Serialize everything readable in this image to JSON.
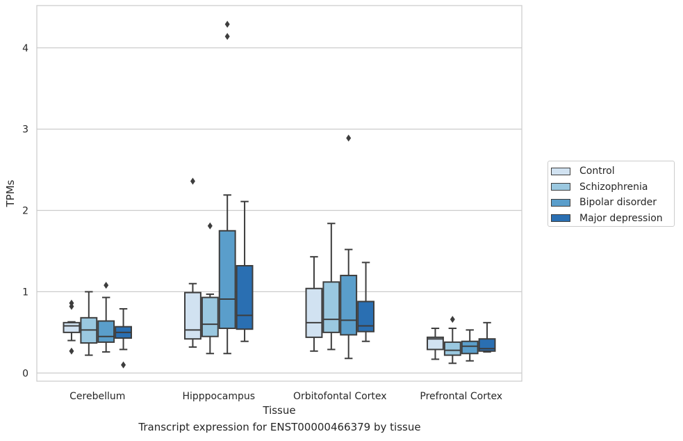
{
  "caption": "Transcript expression for ENST00000466379 by tissue",
  "chart_data": {
    "type": "box",
    "title": "",
    "xlabel": "Tissue",
    "ylabel": "TPMs",
    "ylim": [
      -0.1,
      4.52
    ],
    "yticks": [
      0,
      1,
      2,
      3,
      4
    ],
    "grid": "horizontal",
    "legend_position": "right",
    "categories": [
      "Cerebellum",
      "Hipppocampus",
      "Orbitofontal Cortex",
      "Prefrontal Cortex"
    ],
    "series": [
      {
        "name": "Control",
        "color": "#d1e2f1",
        "boxes": [
          {
            "whislo": 0.4,
            "q1": 0.5,
            "med": 0.58,
            "q3": 0.62,
            "whishi": 0.63,
            "fliers": [
              0.86,
              0.82,
              0.27
            ]
          },
          {
            "whislo": 0.32,
            "q1": 0.42,
            "med": 0.53,
            "q3": 0.99,
            "whishi": 1.1,
            "fliers": [
              2.36
            ]
          },
          {
            "whislo": 0.27,
            "q1": 0.44,
            "med": 0.62,
            "q3": 1.04,
            "whishi": 1.43,
            "fliers": []
          },
          {
            "whislo": 0.17,
            "q1": 0.29,
            "med": 0.42,
            "q3": 0.44,
            "whishi": 0.55,
            "fliers": []
          }
        ]
      },
      {
        "name": "Schizophrenia",
        "color": "#9ac8e0",
        "boxes": [
          {
            "whislo": 0.22,
            "q1": 0.37,
            "med": 0.53,
            "q3": 0.68,
            "whishi": 1.0,
            "fliers": []
          },
          {
            "whislo": 0.24,
            "q1": 0.45,
            "med": 0.6,
            "q3": 0.93,
            "whishi": 0.97,
            "fliers": [
              1.81
            ]
          },
          {
            "whislo": 0.29,
            "q1": 0.5,
            "med": 0.66,
            "q3": 1.12,
            "whishi": 1.84,
            "fliers": []
          },
          {
            "whislo": 0.12,
            "q1": 0.22,
            "med": 0.28,
            "q3": 0.38,
            "whishi": 0.55,
            "fliers": [
              0.66
            ]
          }
        ]
      },
      {
        "name": "Bipolar disorder",
        "color": "#5a9ecb",
        "boxes": [
          {
            "whislo": 0.26,
            "q1": 0.38,
            "med": 0.45,
            "q3": 0.64,
            "whishi": 0.93,
            "fliers": [
              1.08
            ]
          },
          {
            "whislo": 0.24,
            "q1": 0.55,
            "med": 0.91,
            "q3": 1.75,
            "whishi": 2.19,
            "fliers": [
              4.29,
              4.14
            ]
          },
          {
            "whislo": 0.18,
            "q1": 0.47,
            "med": 0.65,
            "q3": 1.2,
            "whishi": 1.52,
            "fliers": [
              2.89
            ]
          },
          {
            "whislo": 0.15,
            "q1": 0.24,
            "med": 0.33,
            "q3": 0.39,
            "whishi": 0.53,
            "fliers": []
          }
        ]
      },
      {
        "name": "Major depression",
        "color": "#2a6fb2",
        "boxes": [
          {
            "whislo": 0.29,
            "q1": 0.43,
            "med": 0.5,
            "q3": 0.57,
            "whishi": 0.79,
            "fliers": [
              0.1
            ]
          },
          {
            "whislo": 0.39,
            "q1": 0.54,
            "med": 0.71,
            "q3": 1.32,
            "whishi": 2.11,
            "fliers": []
          },
          {
            "whislo": 0.39,
            "q1": 0.51,
            "med": 0.58,
            "q3": 0.88,
            "whishi": 1.36,
            "fliers": []
          },
          {
            "whislo": 0.26,
            "q1": 0.27,
            "med": 0.3,
            "q3": 0.42,
            "whishi": 0.62,
            "fliers": []
          }
        ]
      }
    ]
  }
}
